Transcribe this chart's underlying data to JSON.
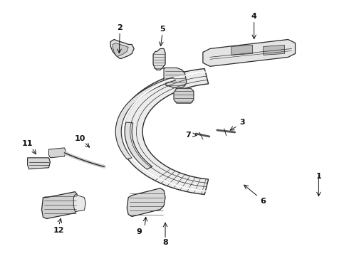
{
  "bg_color": "#ffffff",
  "line_color": "#2a2a2a",
  "text_color": "#111111",
  "fig_width": 4.9,
  "fig_height": 3.6,
  "dpi": 100
}
